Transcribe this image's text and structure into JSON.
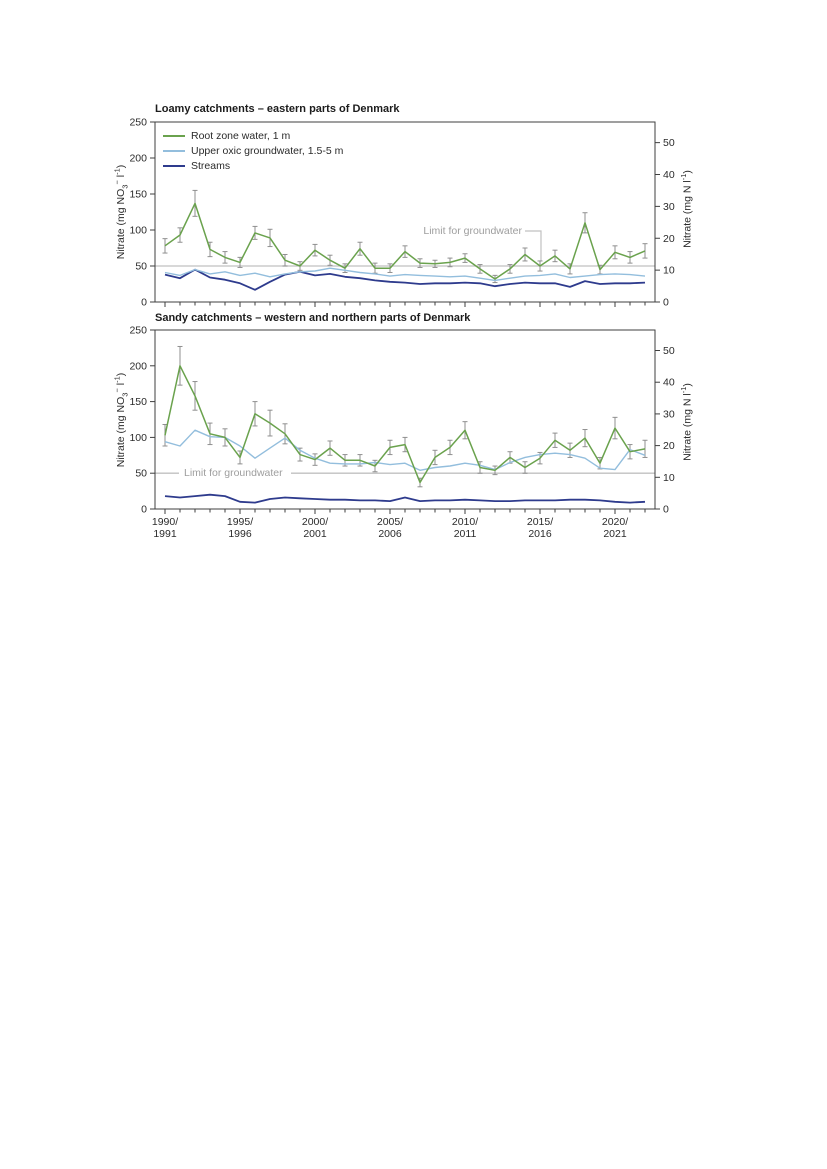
{
  "colors": {
    "root_zone": "#6aa24d",
    "upper_groundwater": "#93bedd",
    "streams": "#2e3b8d",
    "limit_line": "#c0c0c0",
    "limit_label": "#9e9e9e",
    "error_bar": "#8f8f8f",
    "axis": "#3f3f3f",
    "tick_text": "#2b2b2b"
  },
  "axis_labels": {
    "left": {
      "p1": "Nitrate (mg NO",
      "sub": "3",
      "sup1": "−",
      "p2": " l",
      "sup2": "-1",
      "p3": ")"
    },
    "right": {
      "p1": "Nitrate (mg N l",
      "sup1": "-1",
      "p2": ")"
    }
  },
  "chart_data": [
    {
      "type": "line",
      "title": "Loamy catchments – eastern parts of Denmark",
      "x_years": [
        1990,
        1991,
        1992,
        1993,
        1994,
        1995,
        1996,
        1997,
        1998,
        1999,
        2000,
        2001,
        2002,
        2003,
        2004,
        2005,
        2006,
        2007,
        2008,
        2009,
        2010,
        2011,
        2012,
        2013,
        2014,
        2015,
        2016,
        2017,
        2018,
        2019,
        2020,
        2021,
        2022
      ],
      "x_tick_labels": [
        [
          "1990/",
          "1991"
        ],
        [
          "1995/",
          "1996"
        ],
        [
          "2000/",
          "2001"
        ],
        [
          "2005/",
          "2006"
        ],
        [
          "2010/",
          "2011"
        ],
        [
          "2015/",
          "2016"
        ],
        [
          "2020/",
          "2021"
        ]
      ],
      "ylabel_left": "Nitrate (mg NO3- l-1)",
      "ylabel_right": "Nitrate (mg N l-1)",
      "ylim_left": [
        0,
        250
      ],
      "yticks_left": [
        0,
        50,
        100,
        150,
        200,
        250
      ],
      "yticks_right": [
        0,
        10,
        20,
        30,
        40,
        50
      ],
      "right_axis_conversion": 4.427,
      "grid": false,
      "legend_position": "upper-left",
      "limit_line": {
        "value": 50,
        "label": "Limit for groundwater",
        "label_side": "right"
      },
      "series": [
        {
          "name": "Root zone water, 1 m",
          "color": "#6aa24d",
          "values": [
            78,
            93,
            137,
            73,
            62,
            55,
            96,
            89,
            58,
            50,
            72,
            58,
            47,
            74,
            47,
            47,
            70,
            54,
            53,
            55,
            61,
            46,
            32,
            46,
            66,
            50,
            64,
            46,
            110,
            45,
            69,
            62,
            71
          ],
          "errors": [
            10,
            10,
            18,
            10,
            8,
            7,
            9,
            12,
            8,
            6,
            8,
            7,
            6,
            9,
            7,
            6,
            8,
            6,
            5,
            6,
            6,
            6,
            5,
            6,
            9,
            7,
            8,
            7,
            14,
            6,
            9,
            8,
            10
          ]
        },
        {
          "name": "Upper oxic groundwater, 1.5-5 m",
          "color": "#93bedd",
          "values": [
            41,
            37,
            45,
            39,
            42,
            37,
            40,
            35,
            39,
            42,
            43,
            47,
            44,
            41,
            39,
            36,
            38,
            37,
            36,
            35,
            36,
            33,
            30,
            33,
            36,
            37,
            39,
            34,
            36,
            38,
            39,
            38,
            36
          ]
        },
        {
          "name": "Streams",
          "color": "#2e3b8d",
          "values": [
            38,
            33,
            45,
            34,
            31,
            26,
            17,
            28,
            38,
            42,
            37,
            39,
            35,
            33,
            30,
            28,
            27,
            25,
            26,
            26,
            27,
            26,
            22,
            25,
            27,
            26,
            26,
            21,
            29,
            25,
            26,
            26,
            27
          ]
        }
      ]
    },
    {
      "type": "line",
      "title": "Sandy catchments – western and northern parts of Denmark",
      "x_years": [
        1990,
        1991,
        1992,
        1993,
        1994,
        1995,
        1996,
        1997,
        1998,
        1999,
        2000,
        2001,
        2002,
        2003,
        2004,
        2005,
        2006,
        2007,
        2008,
        2009,
        2010,
        2011,
        2012,
        2013,
        2014,
        2015,
        2016,
        2017,
        2018,
        2019,
        2020,
        2021,
        2022
      ],
      "x_tick_labels": [
        [
          "1990/",
          "1991"
        ],
        [
          "1995/",
          "1996"
        ],
        [
          "2000/",
          "2001"
        ],
        [
          "2005/",
          "2006"
        ],
        [
          "2010/",
          "2011"
        ],
        [
          "2015/",
          "2016"
        ],
        [
          "2020/",
          "2021"
        ]
      ],
      "ylabel_left": "Nitrate (mg NO3- l-1)",
      "ylabel_right": "Nitrate (mg N l-1)",
      "ylim_left": [
        0,
        250
      ],
      "yticks_left": [
        0,
        50,
        100,
        150,
        200,
        250
      ],
      "yticks_right": [
        0,
        10,
        20,
        30,
        40,
        50
      ],
      "right_axis_conversion": 4.427,
      "grid": false,
      "legend_position": "none",
      "limit_line": {
        "value": 50,
        "label": "Limit for groundwater",
        "label_side": "left-inline"
      },
      "series": [
        {
          "name": "Root zone water, 1 m",
          "color": "#6aa24d",
          "values": [
            103,
            200,
            158,
            105,
            100,
            72,
            133,
            120,
            105,
            76,
            69,
            85,
            68,
            68,
            60,
            86,
            90,
            37,
            72,
            86,
            110,
            58,
            54,
            72,
            58,
            71,
            96,
            82,
            99,
            64,
            113,
            80,
            84
          ],
          "errors": [
            15,
            27,
            20,
            15,
            12,
            9,
            17,
            18,
            14,
            9,
            8,
            10,
            8,
            8,
            8,
            10,
            10,
            6,
            10,
            10,
            12,
            8,
            6,
            8,
            8,
            8,
            10,
            10,
            12,
            8,
            15,
            10,
            12
          ]
        },
        {
          "name": "Upper oxic groundwater, 1.5-5 m",
          "color": "#93bedd",
          "values": [
            94,
            88,
            110,
            101,
            100,
            88,
            71,
            85,
            99,
            82,
            71,
            64,
            63,
            63,
            65,
            62,
            64,
            54,
            58,
            60,
            64,
            61,
            55,
            65,
            72,
            76,
            78,
            76,
            71,
            57,
            55,
            83,
            75
          ]
        },
        {
          "name": "Streams",
          "color": "#2e3b8d",
          "values": [
            18,
            16,
            18,
            20,
            18,
            10,
            9,
            14,
            16,
            15,
            14,
            13,
            13,
            12,
            12,
            11,
            16,
            11,
            12,
            12,
            13,
            12,
            11,
            11,
            12,
            12,
            12,
            13,
            13,
            12,
            10,
            9,
            10
          ]
        }
      ]
    }
  ]
}
